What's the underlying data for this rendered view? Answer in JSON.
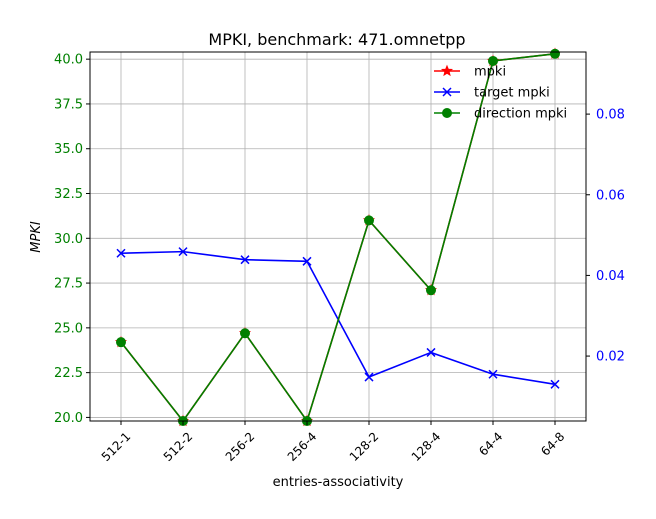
{
  "chart_data": {
    "type": "line",
    "title": "MPKI, benchmark: 471.omnetpp",
    "xlabel": "entries-associativity",
    "ylabel": "MPKI",
    "categories": [
      "512-1",
      "512-2",
      "256-2",
      "256-4",
      "128-2",
      "128-4",
      "64-4",
      "64-8"
    ],
    "y_left": {
      "lim": [
        19.8,
        40.4
      ],
      "ticks": [
        20.0,
        22.5,
        25.0,
        27.5,
        30.0,
        32.5,
        35.0,
        37.5,
        40.0
      ],
      "tick_labels": [
        "20.0",
        "22.5",
        "25.0",
        "27.5",
        "30.0",
        "32.5",
        "35.0",
        "37.5",
        "40.0"
      ],
      "color": "#008000"
    },
    "y_right": {
      "lim": [
        0.0039,
        0.0954
      ],
      "ticks": [
        0.02,
        0.04,
        0.06,
        0.08
      ],
      "tick_labels": [
        "0.02",
        "0.04",
        "0.06",
        "0.08"
      ],
      "color": "#0000ff"
    },
    "grid": true,
    "legend_position": "top-right",
    "series": [
      {
        "name": "mpki",
        "axis": "left",
        "color": "#ff0000",
        "marker": "star",
        "values": [
          24.2,
          19.8,
          24.7,
          19.8,
          31.0,
          27.1,
          39.9,
          40.3
        ]
      },
      {
        "name": "target mpki",
        "axis": "right",
        "color": "#0000ff",
        "marker": "x",
        "values": [
          0.0455,
          0.0459,
          0.0439,
          0.0435,
          0.0148,
          0.0209,
          0.0155,
          0.013
        ]
      },
      {
        "name": "direction mpki",
        "axis": "left",
        "color": "#008000",
        "marker": "circle",
        "values": [
          24.2,
          19.8,
          24.7,
          19.8,
          31.0,
          27.1,
          39.9,
          40.3
        ]
      }
    ]
  }
}
